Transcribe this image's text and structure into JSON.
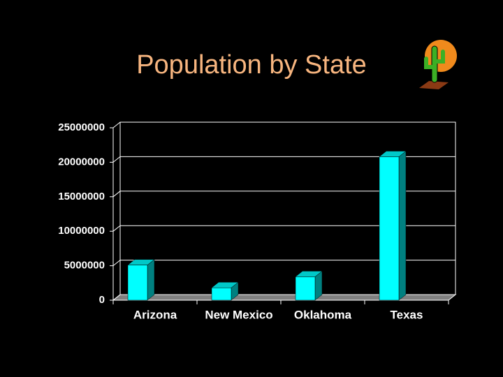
{
  "chart_data": {
    "type": "bar3d",
    "title": "Population by State",
    "categories": [
      "Arizona",
      "New Mexico",
      "Oklahoma",
      "Texas"
    ],
    "values": [
      5100000,
      1800000,
      3400000,
      20800000
    ],
    "color": "#00ffff",
    "ylim": [
      0,
      25000000
    ],
    "yticks": [
      0,
      5000000,
      10000000,
      15000000,
      20000000,
      25000000
    ],
    "grid": true
  }
}
